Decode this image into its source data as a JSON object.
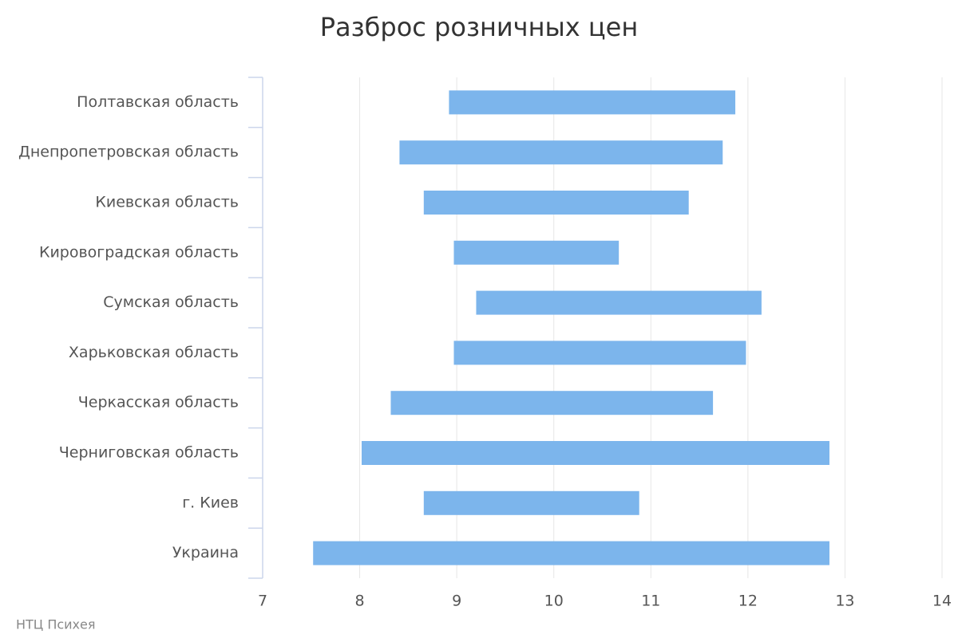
{
  "chart_data": {
    "type": "range-bar",
    "title": "Разброс розничных цен",
    "credits": "НТЦ Психея",
    "categories": [
      "Полтавская область",
      "Днепропетровская область",
      "Киевская область",
      "Кировоградская область",
      "Сумская область",
      "Харьковская область",
      "Черкасская область",
      "Черниговская область",
      "г. Киев",
      "Украина"
    ],
    "low": [
      8.92,
      8.41,
      8.66,
      8.97,
      9.2,
      8.97,
      8.32,
      8.02,
      8.66,
      7.52
    ],
    "high": [
      11.87,
      11.74,
      11.39,
      10.67,
      12.14,
      11.98,
      11.64,
      12.84,
      10.88,
      12.84
    ],
    "color": "#7cb5ec",
    "xlim": [
      7,
      14
    ],
    "xticks": [
      7,
      8,
      9,
      10,
      11,
      12,
      13,
      14
    ],
    "grid": true
  }
}
